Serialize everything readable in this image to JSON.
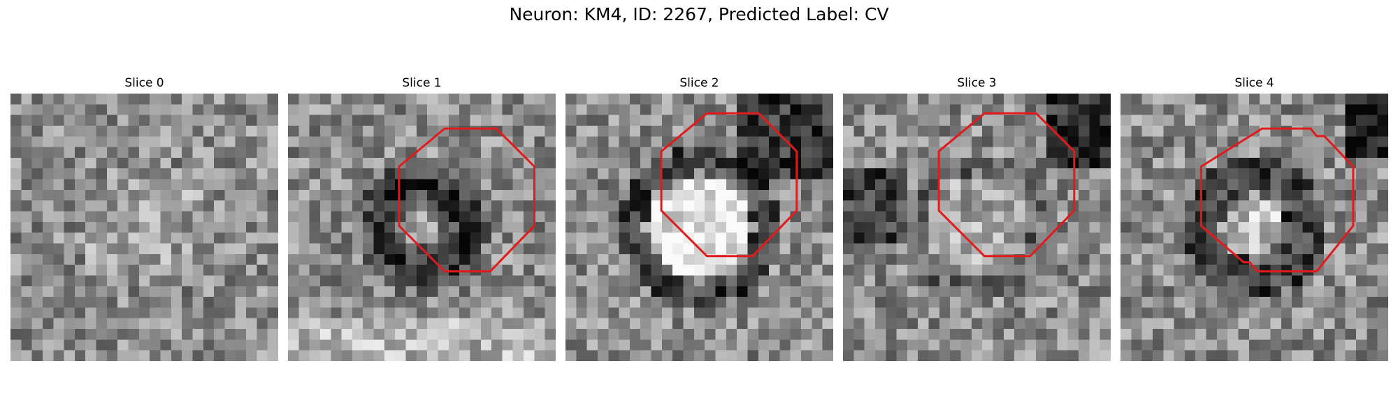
{
  "figure": {
    "title": "Neuron: KM4, ID: 2267, Predicted Label: CV"
  },
  "colors": {
    "contour": "#e31a1c",
    "background": "#ffffff"
  },
  "slices": [
    {
      "label": "Slice 0",
      "contour": null,
      "pattern": "noise"
    },
    {
      "label": "Slice 1",
      "contour": [
        [
          10.3,
          2.3
        ],
        [
          13.7,
          2.3
        ],
        [
          16.2,
          4.8
        ],
        [
          16.2,
          8.7
        ],
        [
          13.3,
          11.7
        ],
        [
          10.3,
          11.7
        ],
        [
          7.3,
          8.7
        ],
        [
          7.3,
          4.8
        ]
      ],
      "pattern": "dark-ring"
    },
    {
      "label": "Slice 2",
      "contour": [
        [
          9.3,
          1.3
        ],
        [
          12.7,
          1.3
        ],
        [
          15.2,
          3.8
        ],
        [
          15.2,
          7.7
        ],
        [
          12.3,
          10.7
        ],
        [
          9.3,
          10.7
        ],
        [
          6.3,
          7.7
        ],
        [
          6.3,
          3.8
        ]
      ],
      "pattern": "bright-center"
    },
    {
      "label": "Slice 3",
      "contour": [
        [
          9.3,
          1.3
        ],
        [
          12.7,
          1.3
        ],
        [
          15.2,
          3.8
        ],
        [
          15.2,
          7.7
        ],
        [
          12.3,
          10.7
        ],
        [
          9.3,
          10.7
        ],
        [
          6.3,
          7.7
        ],
        [
          6.3,
          3.8
        ]
      ],
      "pattern": "faint-ring"
    },
    {
      "label": "Slice 4",
      "contour": [
        [
          9.3,
          2.3
        ],
        [
          12.5,
          2.3
        ],
        [
          12.9,
          2.8
        ],
        [
          13.4,
          2.8
        ],
        [
          15.3,
          4.8
        ],
        [
          15.3,
          8.7
        ],
        [
          12.9,
          11.7
        ],
        [
          9.0,
          11.7
        ],
        [
          8.5,
          11.1
        ],
        [
          8.1,
          11.1
        ],
        [
          5.3,
          8.7
        ],
        [
          5.3,
          4.8
        ]
      ],
      "pattern": "mid-ring"
    }
  ]
}
